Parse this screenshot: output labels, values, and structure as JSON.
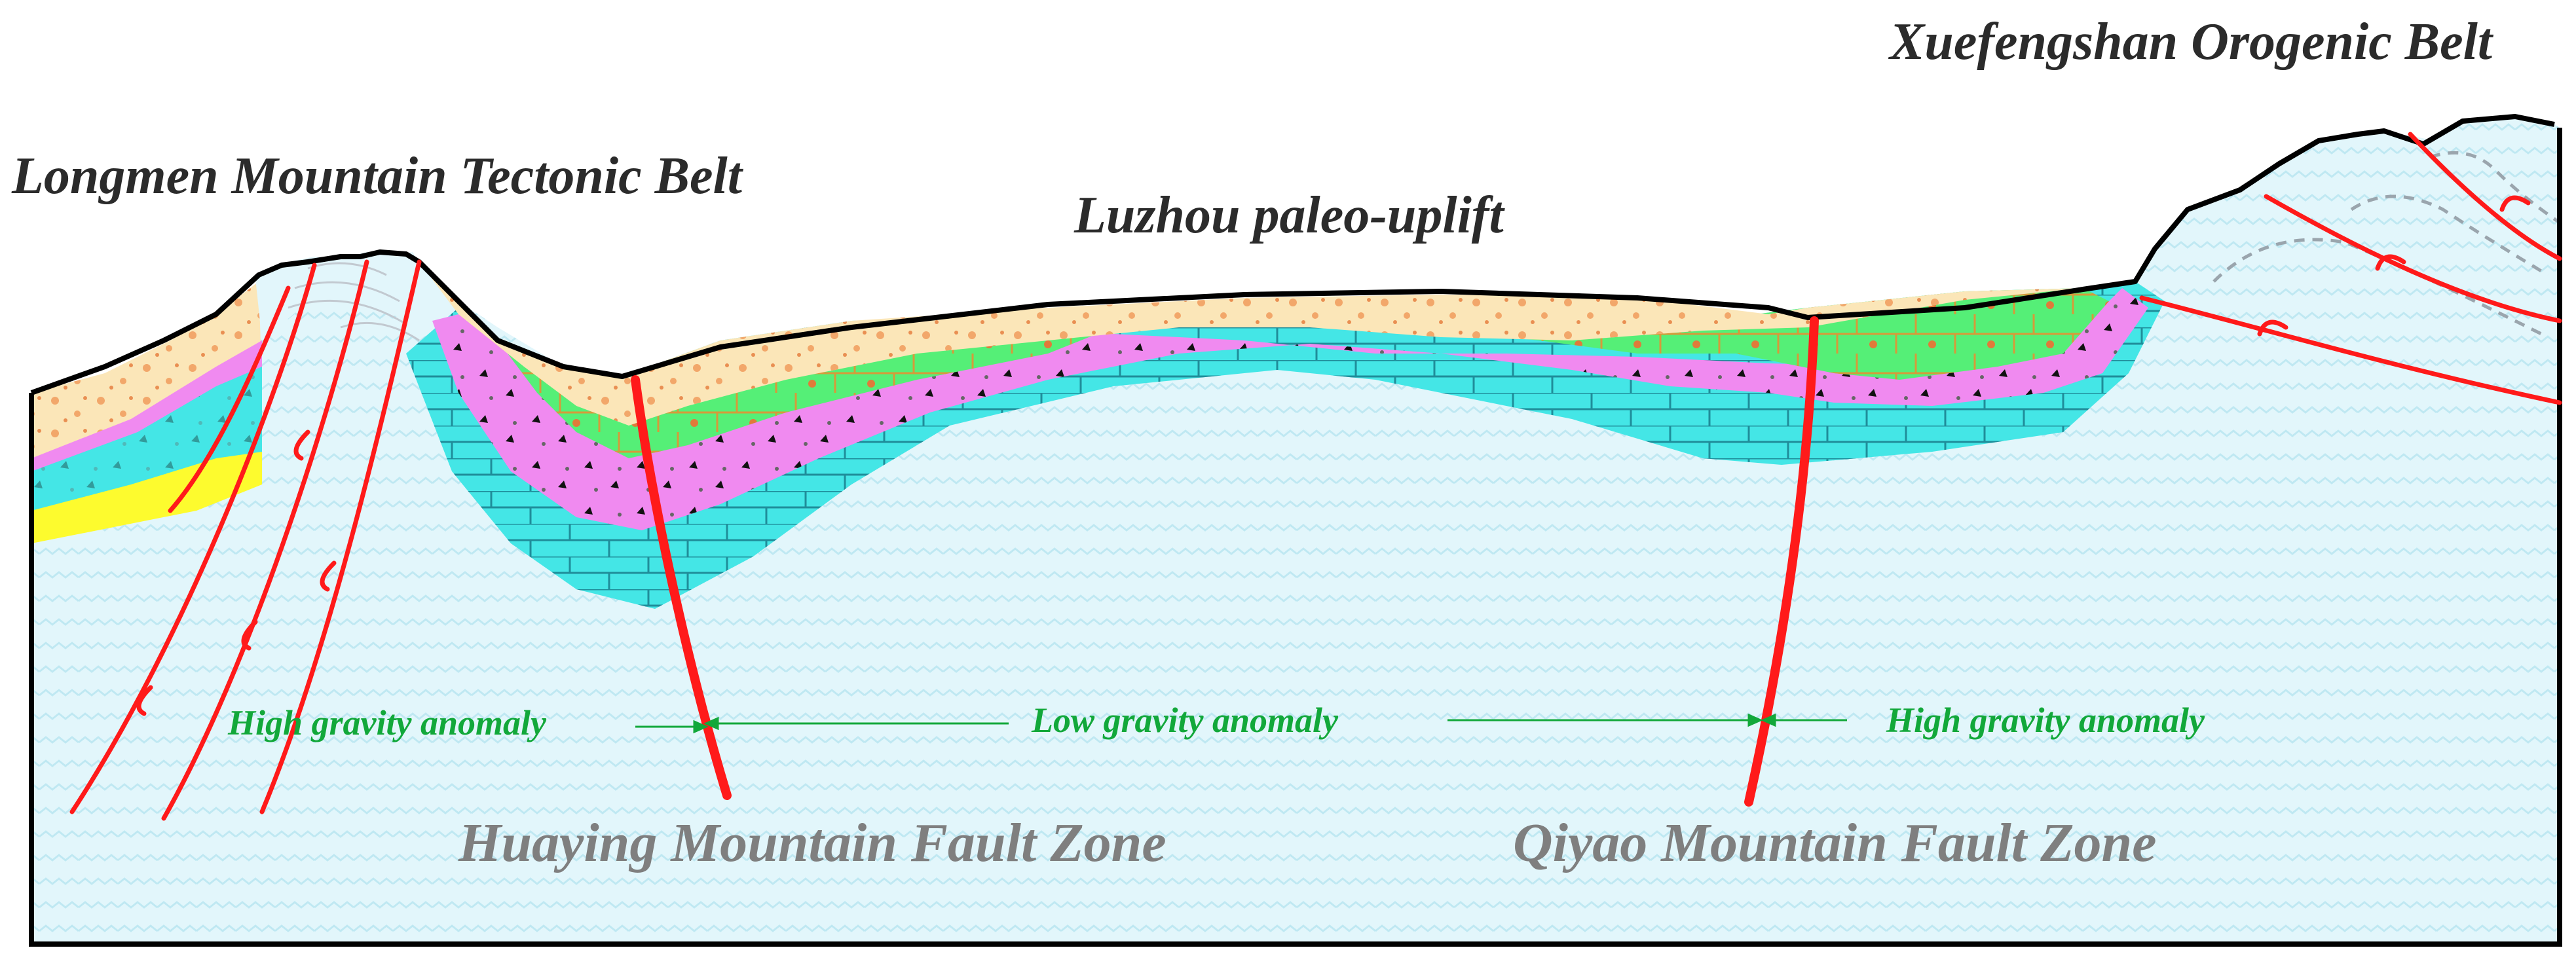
{
  "labels": {
    "longmen": "Longmen Mountain Tectonic Belt",
    "luzhou": "Luzhou paleo-uplift",
    "xuefengshan": "Xuefengshan Orogenic Belt",
    "huaying": "Huaying Mountain Fault Zone",
    "qiyao": "Qiyao Mountain Fault Zone",
    "anomaly_high_left": "High gravity anomaly",
    "anomaly_low": "Low gravity anomaly",
    "anomaly_high_right": "High gravity anomaly"
  },
  "colors": {
    "basement": "#e2f6fb",
    "limestone": "#44e6e6",
    "sandstone": "#f08af0",
    "green_layer": "#55ef77",
    "cover": "#fbe6b8",
    "yellow_layer": "#fdfb2e",
    "fault": "#ff1a1a",
    "anomaly_text": "#12a83a",
    "outline": "#000000"
  }
}
